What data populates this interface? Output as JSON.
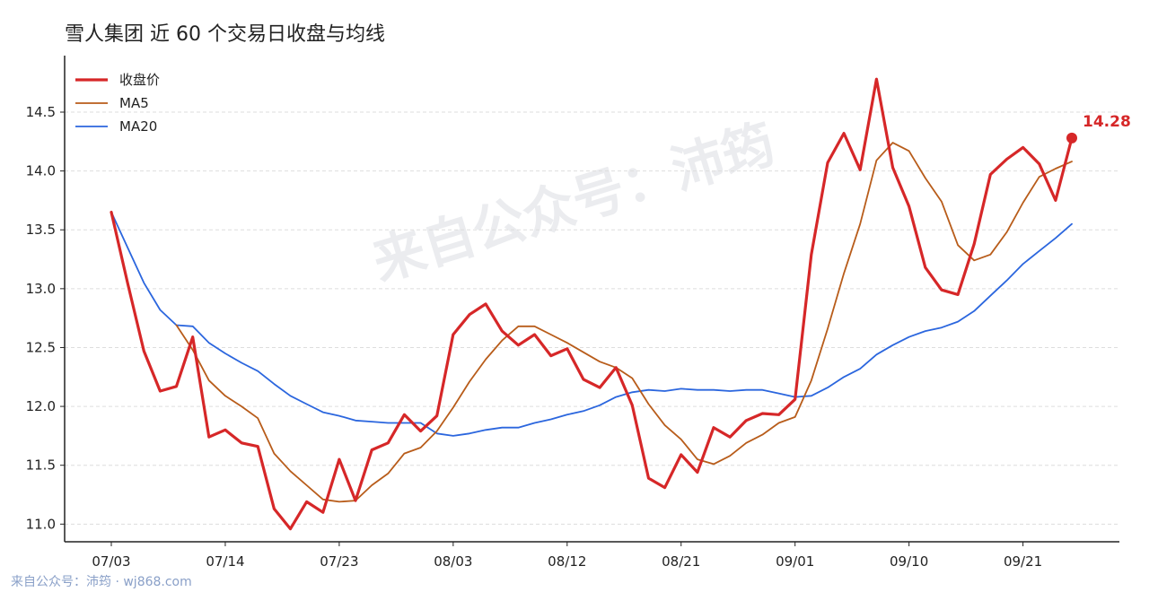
{
  "title": "雪人集团 近 60 个交易日收盘与均线",
  "footer": "来自公众号：沛筠 · wj868.com",
  "watermark": "来自公众号：沛筠",
  "chart_data": {
    "type": "line",
    "title": "雪人集团 近 60 个交易日收盘与均线",
    "xlabel": "",
    "ylabel": "",
    "ylim": [
      10.85,
      14.98
    ],
    "yticks": [
      "11.0",
      "11.5",
      "12.0",
      "12.5",
      "13.0",
      "13.5",
      "14.0",
      "14.5"
    ],
    "xtick_labels": [
      {
        "index": 0,
        "label": "07/03"
      },
      {
        "index": 7,
        "label": "07/14"
      },
      {
        "index": 14,
        "label": "07/23"
      },
      {
        "index": 21,
        "label": "08/03"
      },
      {
        "index": 28,
        "label": "08/12"
      },
      {
        "index": 35,
        "label": "08/21"
      },
      {
        "index": 42,
        "label": "09/01"
      },
      {
        "index": 49,
        "label": "09/10"
      },
      {
        "index": 56,
        "label": "09/21"
      }
    ],
    "grid": "horizontal dashed",
    "legend": "top-left",
    "last_value_label": "14.28",
    "series": [
      {
        "name": "收盘价",
        "color": "#d62728",
        "values": [
          13.65,
          13.05,
          12.47,
          12.13,
          12.17,
          12.59,
          11.74,
          11.8,
          11.69,
          11.66,
          11.13,
          10.96,
          11.19,
          11.1,
          11.55,
          11.2,
          11.63,
          11.69,
          11.93,
          11.79,
          11.92,
          12.61,
          12.78,
          12.87,
          12.64,
          12.52,
          12.61,
          12.43,
          12.49,
          12.23,
          12.16,
          12.33,
          12.01,
          11.39,
          11.31,
          11.59,
          11.44,
          11.82,
          11.74,
          11.88,
          11.94,
          11.93,
          12.06,
          13.29,
          14.07,
          14.32,
          14.01,
          14.78,
          14.03,
          13.7,
          13.18,
          12.99,
          12.95,
          13.38,
          13.97,
          14.1,
          14.2,
          14.06,
          13.75,
          14.28
        ]
      },
      {
        "name": "MA5",
        "color": "#b85c1a",
        "values": [
          null,
          null,
          null,
          null,
          12.69,
          12.48,
          12.22,
          12.09,
          12.0,
          11.9,
          11.6,
          11.45,
          11.33,
          11.21,
          11.19,
          11.2,
          11.33,
          11.43,
          11.6,
          11.65,
          11.79,
          11.99,
          12.21,
          12.4,
          12.56,
          12.68,
          12.68,
          12.61,
          12.54,
          12.46,
          12.38,
          12.33,
          12.24,
          12.02,
          11.84,
          11.72,
          11.55,
          11.51,
          11.58,
          11.69,
          11.76,
          11.86,
          11.91,
          12.22,
          12.66,
          13.13,
          13.55,
          14.09,
          14.24,
          14.17,
          13.94,
          13.74,
          13.37,
          13.24,
          13.29,
          13.48,
          13.73,
          13.95,
          14.02,
          14.08
        ]
      },
      {
        "name": "MA20",
        "color": "#2b66de",
        "values": [
          13.65,
          13.35,
          13.05,
          12.82,
          12.69,
          12.68,
          12.54,
          12.45,
          12.37,
          12.3,
          12.19,
          12.09,
          12.02,
          11.95,
          11.92,
          11.88,
          11.87,
          11.86,
          11.86,
          11.86,
          11.77,
          11.75,
          11.77,
          11.8,
          11.82,
          11.82,
          11.86,
          11.89,
          11.93,
          11.96,
          12.01,
          12.08,
          12.12,
          12.14,
          12.13,
          12.15,
          12.14,
          12.14,
          12.13,
          12.14,
          12.14,
          12.11,
          12.08,
          12.09,
          12.16,
          12.25,
          12.32,
          12.44,
          12.52,
          12.59,
          12.64,
          12.67,
          12.72,
          12.81,
          12.94,
          13.07,
          13.21,
          13.32,
          13.43,
          13.55
        ]
      }
    ]
  }
}
